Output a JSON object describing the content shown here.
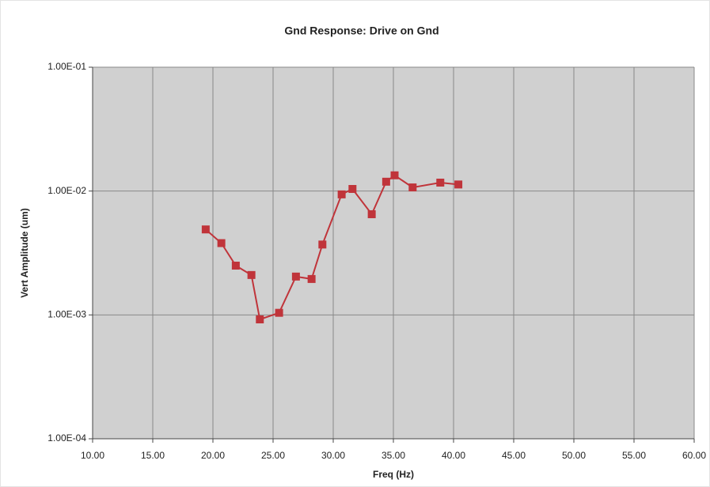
{
  "chart_data": {
    "type": "line",
    "title": "Gnd Response: Drive on Gnd",
    "x_label": "Freq (Hz)",
    "y_label": "Vert Amplitude (um)",
    "x": [
      19.4,
      20.7,
      21.9,
      23.2,
      23.9,
      25.5,
      26.9,
      28.2,
      29.1,
      30.7,
      31.6,
      33.2,
      34.4,
      35.1,
      36.6,
      38.9,
      40.4
    ],
    "values": [
      0.0049,
      0.0038,
      0.0025,
      0.0021,
      0.00092,
      0.00104,
      0.00204,
      0.00195,
      0.0037,
      0.0094,
      0.0104,
      0.0065,
      0.0119,
      0.0134,
      0.0107,
      0.0117,
      0.0113
    ],
    "color": "#c0343a",
    "xlim": [
      10,
      60
    ],
    "xticks": [
      {
        "value": 10,
        "label": "10.00"
      },
      {
        "value": 15,
        "label": "15.00"
      },
      {
        "value": 20,
        "label": "20.00"
      },
      {
        "value": 25,
        "label": "25.00"
      },
      {
        "value": 30,
        "label": "30.00"
      },
      {
        "value": 35,
        "label": "35.00"
      },
      {
        "value": 40,
        "label": "40.00"
      },
      {
        "value": 45,
        "label": "45.00"
      },
      {
        "value": 50,
        "label": "50.00"
      },
      {
        "value": 55,
        "label": "55.00"
      },
      {
        "value": 60,
        "label": "60.00"
      }
    ],
    "ylim": [
      0.0001,
      0.1
    ],
    "yticks": [
      {
        "value": 0.0001,
        "label": "1.00E-04"
      },
      {
        "value": 0.001,
        "label": "1.00E-03"
      },
      {
        "value": 0.01,
        "label": "1.00E-02"
      },
      {
        "value": 0.1,
        "label": "1.00E-01"
      }
    ],
    "y_log": true,
    "grid": true
  }
}
